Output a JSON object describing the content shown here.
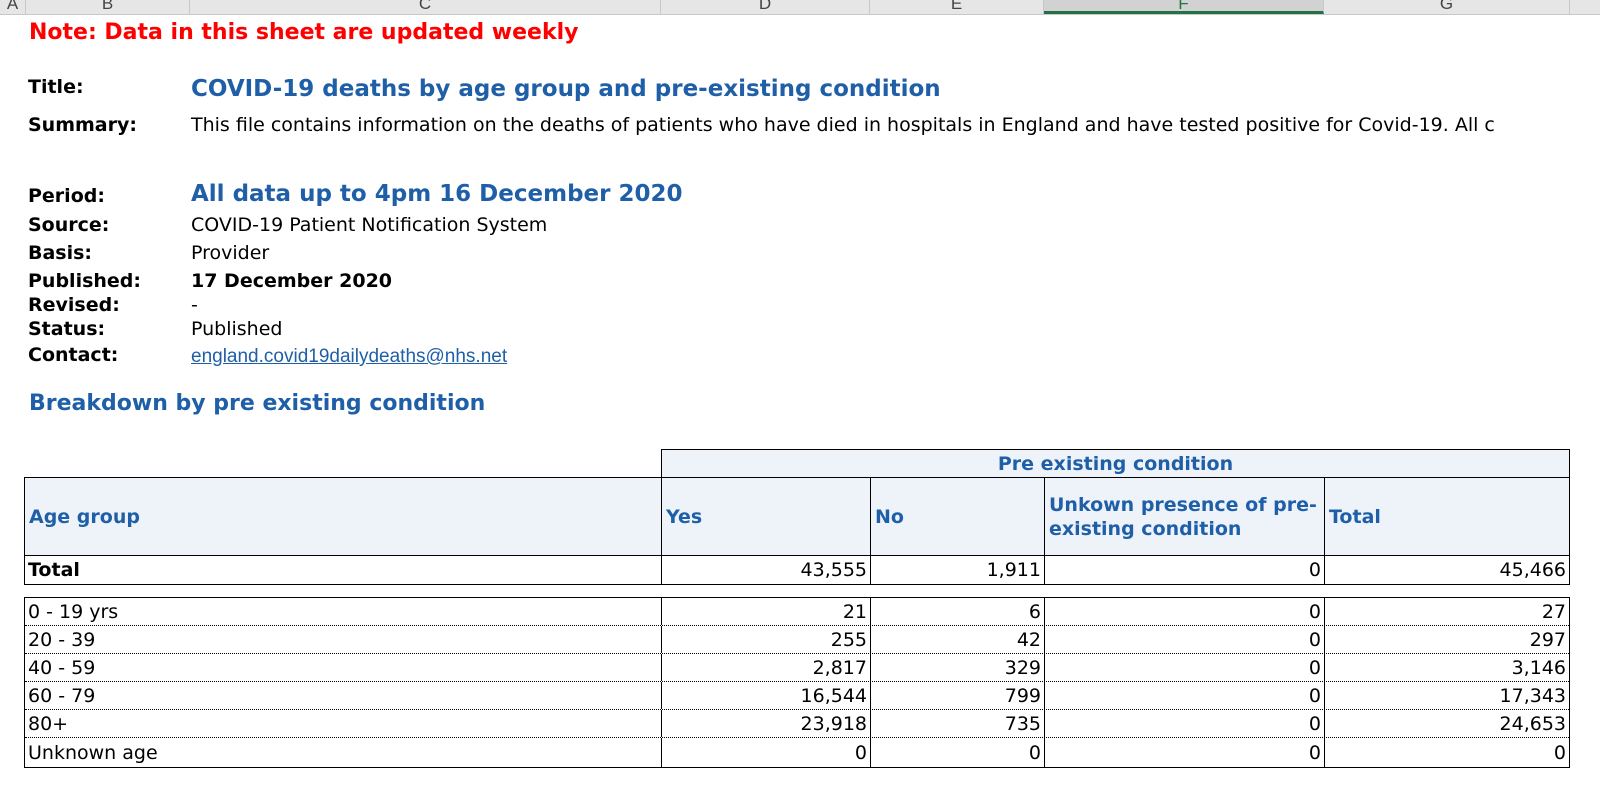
{
  "sheet": {
    "columns": [
      "A",
      "B",
      "C",
      "D",
      "E",
      "F",
      "G"
    ],
    "selected_column": "F"
  },
  "note": "Note: Data in this sheet are updated weekly",
  "meta": {
    "title_label": "Title:",
    "title": "COVID-19 deaths by age group and pre-existing condition",
    "summary_label": "Summary:",
    "summary": "This file contains information on the deaths of patients who have died in hospitals in England and have tested positive for Covid-19. All c",
    "period_label": "Period:",
    "period": "All data up to 4pm 16 December 2020",
    "source_label": "Source:",
    "source": "COVID-19 Patient Notification System",
    "basis_label": "Basis:",
    "basis": "Provider",
    "published_label": "Published:",
    "published": "17 December 2020",
    "revised_label": "Revised:",
    "revised": "-",
    "status_label": "Status:",
    "status": "Published",
    "contact_label": "Contact:",
    "contact": "england.covid19dailydeaths@nhs.net"
  },
  "section_title": "Breakdown by pre existing condition",
  "table": {
    "group_header": "Pre existing condition",
    "headers": {
      "age": "Age group",
      "yes": "Yes",
      "no": "No",
      "unknown": "Unkown presence of pre-existing condition",
      "total": "Total"
    },
    "total_row": {
      "label": "Total",
      "yes": "43,555",
      "no": "1,911",
      "unknown": "0",
      "total": "45,466"
    },
    "rows": [
      {
        "label": "0 - 19 yrs",
        "yes": "21",
        "no": "6",
        "unknown": "0",
        "total": "27"
      },
      {
        "label": "20 - 39",
        "yes": "255",
        "no": "42",
        "unknown": "0",
        "total": "297"
      },
      {
        "label": "40 - 59",
        "yes": "2,817",
        "no": "329",
        "unknown": "0",
        "total": "3,146"
      },
      {
        "label": "60 - 79",
        "yes": "16,544",
        "no": "799",
        "unknown": "0",
        "total": "17,343"
      },
      {
        "label": "80+",
        "yes": "23,918",
        "no": "735",
        "unknown": "0",
        "total": "24,653"
      },
      {
        "label": "Unknown age",
        "yes": "0",
        "no": "0",
        "unknown": "0",
        "total": "0"
      }
    ]
  }
}
